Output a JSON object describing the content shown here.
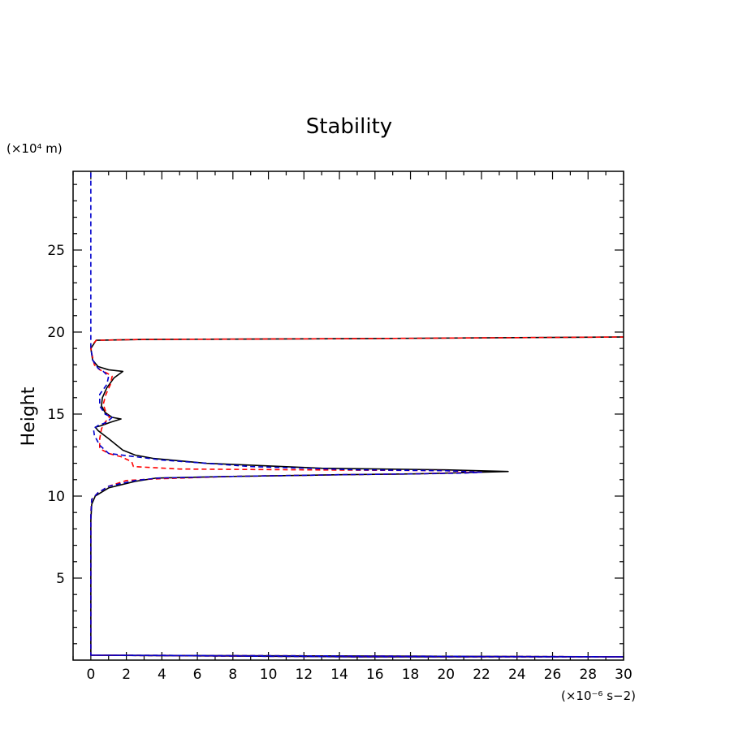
{
  "chart_data": {
    "type": "line",
    "title": "Stability",
    "xlabel": "",
    "ylabel": "Height",
    "x_unit": "(×10⁻⁶ s−2)",
    "y_unit": "(×10⁴ m)",
    "xlim": [
      -1,
      30
    ],
    "ylim": [
      0,
      29.8
    ],
    "x_ticks": [
      0,
      2,
      4,
      6,
      8,
      10,
      12,
      14,
      16,
      18,
      20,
      22,
      24,
      26,
      28,
      30
    ],
    "y_ticks": [
      5,
      10,
      15,
      20,
      25
    ],
    "x_tick_labels": [
      "0",
      "2",
      "4",
      "6",
      "8",
      "10",
      "12",
      "14",
      "16",
      "18",
      "20",
      "22",
      "24",
      "26",
      "28",
      "30"
    ],
    "y_tick_labels": [
      "5",
      "10",
      "15",
      "20",
      "25"
    ],
    "grid": false,
    "legend": "none",
    "series": [
      {
        "color": "#000000",
        "style": "solid",
        "points": [
          [
            0,
            0.3
          ],
          [
            15,
            0.2
          ],
          [
            30,
            0.2
          ],
          [
            0,
            0.3
          ],
          [
            0,
            8.5
          ],
          [
            0.05,
            9.5
          ],
          [
            0.25,
            10.0
          ],
          [
            1.0,
            10.5
          ],
          [
            2.5,
            10.9
          ],
          [
            3.7,
            11.1
          ],
          [
            8.0,
            11.2
          ],
          [
            14.0,
            11.3
          ],
          [
            18.0,
            11.35
          ],
          [
            20.0,
            11.4
          ],
          [
            23.5,
            11.5
          ],
          [
            20.0,
            11.6
          ],
          [
            13.0,
            11.7
          ],
          [
            6.5,
            12.0
          ],
          [
            3.5,
            12.3
          ],
          [
            2.5,
            12.5
          ],
          [
            1.8,
            12.8
          ],
          [
            1.0,
            13.5
          ],
          [
            0.4,
            14.0
          ],
          [
            0.25,
            14.2
          ],
          [
            0.6,
            14.3
          ],
          [
            1.1,
            14.5
          ],
          [
            1.7,
            14.7
          ],
          [
            1.2,
            14.8
          ],
          [
            0.8,
            15.1
          ],
          [
            0.6,
            15.5
          ],
          [
            0.65,
            16.0
          ],
          [
            0.9,
            16.6
          ],
          [
            1.3,
            17.2
          ],
          [
            1.8,
            17.6
          ],
          [
            1.0,
            17.7
          ],
          [
            0.4,
            17.9
          ],
          [
            0.1,
            18.3
          ],
          [
            0.0,
            19.0
          ],
          [
            0.3,
            19.5
          ],
          [
            3.0,
            19.55
          ],
          [
            15,
            19.6
          ],
          [
            30,
            19.7
          ]
        ]
      },
      {
        "color": "#ff0000",
        "style": "dashed",
        "points": [
          [
            0,
            0.3
          ],
          [
            15,
            0.2
          ],
          [
            30,
            0.2
          ],
          [
            0,
            0.3
          ],
          [
            0,
            9.0
          ],
          [
            0.05,
            9.8
          ],
          [
            0.4,
            10.2
          ],
          [
            1.0,
            10.6
          ],
          [
            2.0,
            10.95
          ],
          [
            3.7,
            11.05
          ],
          [
            8.0,
            11.2
          ],
          [
            14.0,
            11.3
          ],
          [
            18.0,
            11.35
          ],
          [
            20.0,
            11.4
          ],
          [
            22.0,
            11.45
          ],
          [
            20.0,
            11.55
          ],
          [
            12.0,
            11.6
          ],
          [
            5.0,
            11.65
          ],
          [
            2.4,
            11.8
          ],
          [
            2.3,
            12.1
          ],
          [
            1.7,
            12.4
          ],
          [
            1.0,
            12.6
          ],
          [
            0.5,
            12.9
          ],
          [
            0.5,
            13.5
          ],
          [
            0.6,
            14.1
          ],
          [
            0.8,
            14.5
          ],
          [
            1.05,
            14.8
          ],
          [
            0.85,
            15.1
          ],
          [
            0.7,
            15.6
          ],
          [
            0.85,
            16.2
          ],
          [
            1.1,
            16.8
          ],
          [
            1.2,
            17.3
          ],
          [
            0.9,
            17.5
          ],
          [
            0.5,
            17.7
          ],
          [
            0.2,
            18.0
          ],
          [
            0.05,
            18.7
          ],
          [
            0.0,
            19.1
          ],
          [
            0.3,
            19.5
          ],
          [
            3.0,
            19.55
          ],
          [
            15,
            19.6
          ],
          [
            30,
            19.7
          ]
        ]
      },
      {
        "color": "#0000cc",
        "style": "dashed",
        "points": [
          [
            0,
            0.3
          ],
          [
            15,
            0.2
          ],
          [
            30,
            0.2
          ],
          [
            0,
            0.3
          ],
          [
            0,
            8.8
          ],
          [
            0.05,
            9.8
          ],
          [
            0.4,
            10.2
          ],
          [
            1.0,
            10.6
          ],
          [
            2.5,
            10.95
          ],
          [
            3.8,
            11.1
          ],
          [
            8.0,
            11.2
          ],
          [
            14.0,
            11.3
          ],
          [
            18.0,
            11.35
          ],
          [
            21.0,
            11.4
          ],
          [
            22.0,
            11.45
          ],
          [
            20.0,
            11.55
          ],
          [
            15.0,
            11.6
          ],
          [
            9.0,
            11.8
          ],
          [
            4.0,
            12.2
          ],
          [
            1.0,
            12.6
          ],
          [
            0.5,
            13.1
          ],
          [
            0.2,
            13.7
          ],
          [
            0.15,
            14.1
          ],
          [
            0.4,
            14.3
          ],
          [
            0.9,
            14.5
          ],
          [
            1.2,
            14.8
          ],
          [
            0.8,
            15.0
          ],
          [
            0.5,
            15.5
          ],
          [
            0.5,
            16.2
          ],
          [
            0.9,
            16.8
          ],
          [
            1.0,
            17.3
          ],
          [
            0.7,
            17.6
          ],
          [
            0.4,
            17.8
          ],
          [
            0.1,
            18.3
          ],
          [
            0.0,
            19.1
          ],
          [
            0.0,
            20.0
          ],
          [
            0.0,
            25.0
          ],
          [
            0.0,
            29.8
          ]
        ]
      }
    ]
  }
}
